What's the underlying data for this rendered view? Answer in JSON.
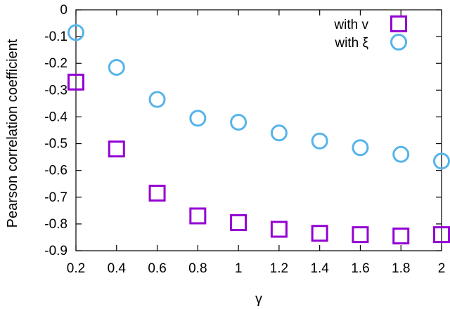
{
  "chart_data": {
    "type": "scatter",
    "x": [
      0.2,
      0.4,
      0.6,
      0.8,
      1.0,
      1.2,
      1.4,
      1.6,
      1.8,
      2.0
    ],
    "series": [
      {
        "name": "with v",
        "marker": "square",
        "color": "#9400d3",
        "values": [
          -0.27,
          -0.52,
          -0.685,
          -0.77,
          -0.795,
          -0.82,
          -0.835,
          -0.84,
          -0.845,
          -0.84
        ]
      },
      {
        "name": "with ξ",
        "marker": "circle",
        "color": "#56b4e9",
        "values": [
          -0.085,
          -0.215,
          -0.335,
          -0.405,
          -0.42,
          -0.46,
          -0.49,
          -0.515,
          -0.54,
          -0.565
        ]
      }
    ],
    "xlabel": "γ",
    "ylabel": "Pearson correlation coefficient",
    "xlim": [
      0.2,
      2.0
    ],
    "ylim": [
      -0.9,
      0.0
    ],
    "xticks": [
      0.2,
      0.4,
      0.6,
      0.8,
      1.0,
      1.2,
      1.4,
      1.6,
      1.8,
      2.0
    ],
    "xtick_labels": [
      "0.2",
      "0.4",
      "0.6",
      "0.8",
      "1",
      "1.2",
      "1.4",
      "1.6",
      "1.8",
      "2"
    ],
    "yticks": [
      0,
      -0.1,
      -0.2,
      -0.3,
      -0.4,
      -0.5,
      -0.6,
      -0.7,
      -0.8,
      -0.9
    ],
    "ytick_labels": [
      "0",
      "-0.1",
      "-0.2",
      "-0.3",
      "-0.4",
      "-0.5",
      "-0.6",
      "-0.7",
      "-0.8",
      "-0.9"
    ],
    "grid": false,
    "legend_position": "top-right"
  }
}
